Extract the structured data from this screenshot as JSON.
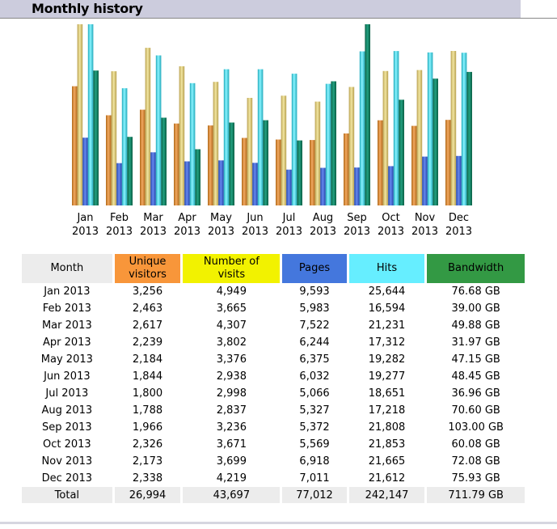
{
  "header": {
    "title": "Monthly history"
  },
  "colors": {
    "unique_visitors": "#f8963a",
    "visits": "#f2f200",
    "pages": "#4477dd",
    "hits": "#66eeff",
    "bandwidth": "#339944",
    "month_header": "#ececec"
  },
  "chart_data": {
    "type": "bar",
    "title": "Monthly history",
    "categories": [
      "Jan 2013",
      "Feb 2013",
      "Mar 2013",
      "Apr 2013",
      "May 2013",
      "Jun 2013",
      "Jul 2013",
      "Aug 2013",
      "Sep 2013",
      "Oct 2013",
      "Nov 2013",
      "Dec 2013"
    ],
    "category_lines": [
      [
        "Jan",
        "2013"
      ],
      [
        "Feb",
        "2013"
      ],
      [
        "Mar",
        "2013"
      ],
      [
        "Apr",
        "2013"
      ],
      [
        "May",
        "2013"
      ],
      [
        "Jun",
        "2013"
      ],
      [
        "Jul",
        "2013"
      ],
      [
        "Aug",
        "2013"
      ],
      [
        "Sep",
        "2013"
      ],
      [
        "Oct",
        "2013"
      ],
      [
        "Nov",
        "2013"
      ],
      [
        "Dec",
        "2013"
      ]
    ],
    "series": [
      {
        "name": "Unique visitors",
        "values": [
          3256,
          2463,
          2617,
          2239,
          2184,
          1844,
          1800,
          1788,
          1966,
          2326,
          2173,
          2338
        ],
        "group": "visits",
        "colors": [
          "#b06818",
          "#f2a860"
        ]
      },
      {
        "name": "Number of visits",
        "values": [
          4949,
          3665,
          4307,
          3802,
          3376,
          2938,
          2998,
          2837,
          3236,
          3671,
          3699,
          4219
        ],
        "group": "visits",
        "colors": [
          "#b8a050",
          "#f2e6a0"
        ]
      },
      {
        "name": "Pages",
        "values": [
          9593,
          5983,
          7522,
          6244,
          6375,
          6032,
          5066,
          5327,
          5372,
          5569,
          6918,
          7011
        ],
        "group": "hits",
        "colors": [
          "#2244aa",
          "#6688ee"
        ]
      },
      {
        "name": "Hits",
        "values": [
          25644,
          16594,
          21231,
          17312,
          19282,
          19277,
          18651,
          17218,
          21808,
          21853,
          21665,
          21612
        ],
        "group": "hits",
        "colors": [
          "#22aabb",
          "#88f4ff"
        ]
      },
      {
        "name": "Bandwidth",
        "values": [
          76.68,
          39.0,
          49.88,
          31.97,
          47.15,
          48.45,
          36.96,
          70.6,
          103.0,
          60.08,
          72.08,
          75.93
        ],
        "group": "bandwidth",
        "colors": [
          "#0a5e44",
          "#22a080"
        ]
      }
    ],
    "xlabel": "",
    "ylabel": ""
  },
  "table": {
    "headers": [
      {
        "label": "Month"
      },
      {
        "label": "Unique visitors",
        "lines": [
          "Unique",
          "visitors"
        ]
      },
      {
        "label": "Number of visits",
        "lines": [
          "Number of",
          "visits"
        ]
      },
      {
        "label": "Pages"
      },
      {
        "label": "Hits"
      },
      {
        "label": "Bandwidth"
      }
    ],
    "rows": [
      [
        "Jan 2013",
        "3,256",
        "4,949",
        "9,593",
        "25,644",
        "76.68 GB"
      ],
      [
        "Feb 2013",
        "2,463",
        "3,665",
        "5,983",
        "16,594",
        "39.00 GB"
      ],
      [
        "Mar 2013",
        "2,617",
        "4,307",
        "7,522",
        "21,231",
        "49.88 GB"
      ],
      [
        "Apr 2013",
        "2,239",
        "3,802",
        "6,244",
        "17,312",
        "31.97 GB"
      ],
      [
        "May 2013",
        "2,184",
        "3,376",
        "6,375",
        "19,282",
        "47.15 GB"
      ],
      [
        "Jun 2013",
        "1,844",
        "2,938",
        "6,032",
        "19,277",
        "48.45 GB"
      ],
      [
        "Jul 2013",
        "1,800",
        "2,998",
        "5,066",
        "18,651",
        "36.96 GB"
      ],
      [
        "Aug 2013",
        "1,788",
        "2,837",
        "5,327",
        "17,218",
        "70.60 GB"
      ],
      [
        "Sep 2013",
        "1,966",
        "3,236",
        "5,372",
        "21,808",
        "103.00 GB"
      ],
      [
        "Oct 2013",
        "2,326",
        "3,671",
        "5,569",
        "21,853",
        "60.08 GB"
      ],
      [
        "Nov 2013",
        "2,173",
        "3,699",
        "6,918",
        "21,665",
        "72.08 GB"
      ],
      [
        "Dec 2013",
        "2,338",
        "4,219",
        "7,011",
        "21,612",
        "75.93 GB"
      ]
    ],
    "total": [
      "Total",
      "26,994",
      "43,697",
      "77,012",
      "242,147",
      "711.79 GB"
    ]
  }
}
